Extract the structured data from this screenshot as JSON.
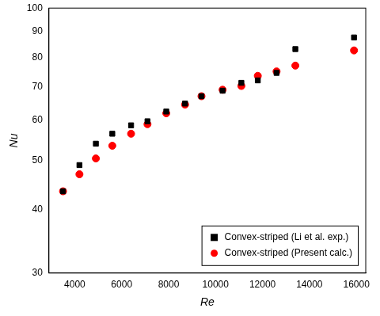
{
  "chart_data": {
    "type": "scatter",
    "x_label": "Re",
    "y_label": "Nu",
    "x": [
      3500,
      4200,
      4900,
      5600,
      6400,
      7100,
      7900,
      8700,
      9400,
      10300,
      11100,
      11800,
      12600,
      13400,
      15900
    ],
    "series": [
      {
        "name": "Convex-striped (Li et al. exp.)",
        "color": "#000000",
        "marker": "square",
        "values": [
          43.5,
          49,
          54,
          56.5,
          58.7,
          59.8,
          62.5,
          64.8,
          67,
          68.7,
          71.2,
          72,
          74.5,
          83,
          87.5
        ]
      },
      {
        "name": "Convex-striped (Present calc.)",
        "color": "#ff0000",
        "marker": "circle",
        "values": [
          43.5,
          47,
          50.5,
          53.5,
          56.5,
          59,
          62,
          64.5,
          67,
          69,
          70.2,
          73.5,
          75,
          77,
          82.5
        ]
      }
    ],
    "xlim": [
      2900,
      16400
    ],
    "xticks": [
      4000,
      6000,
      8000,
      10000,
      12000,
      14000,
      16000
    ],
    "ylim": [
      30,
      100
    ],
    "yticks": [
      30,
      40,
      50,
      60,
      70,
      80,
      90,
      100
    ],
    "log": "y",
    "grid": false,
    "legend": "lower right"
  }
}
